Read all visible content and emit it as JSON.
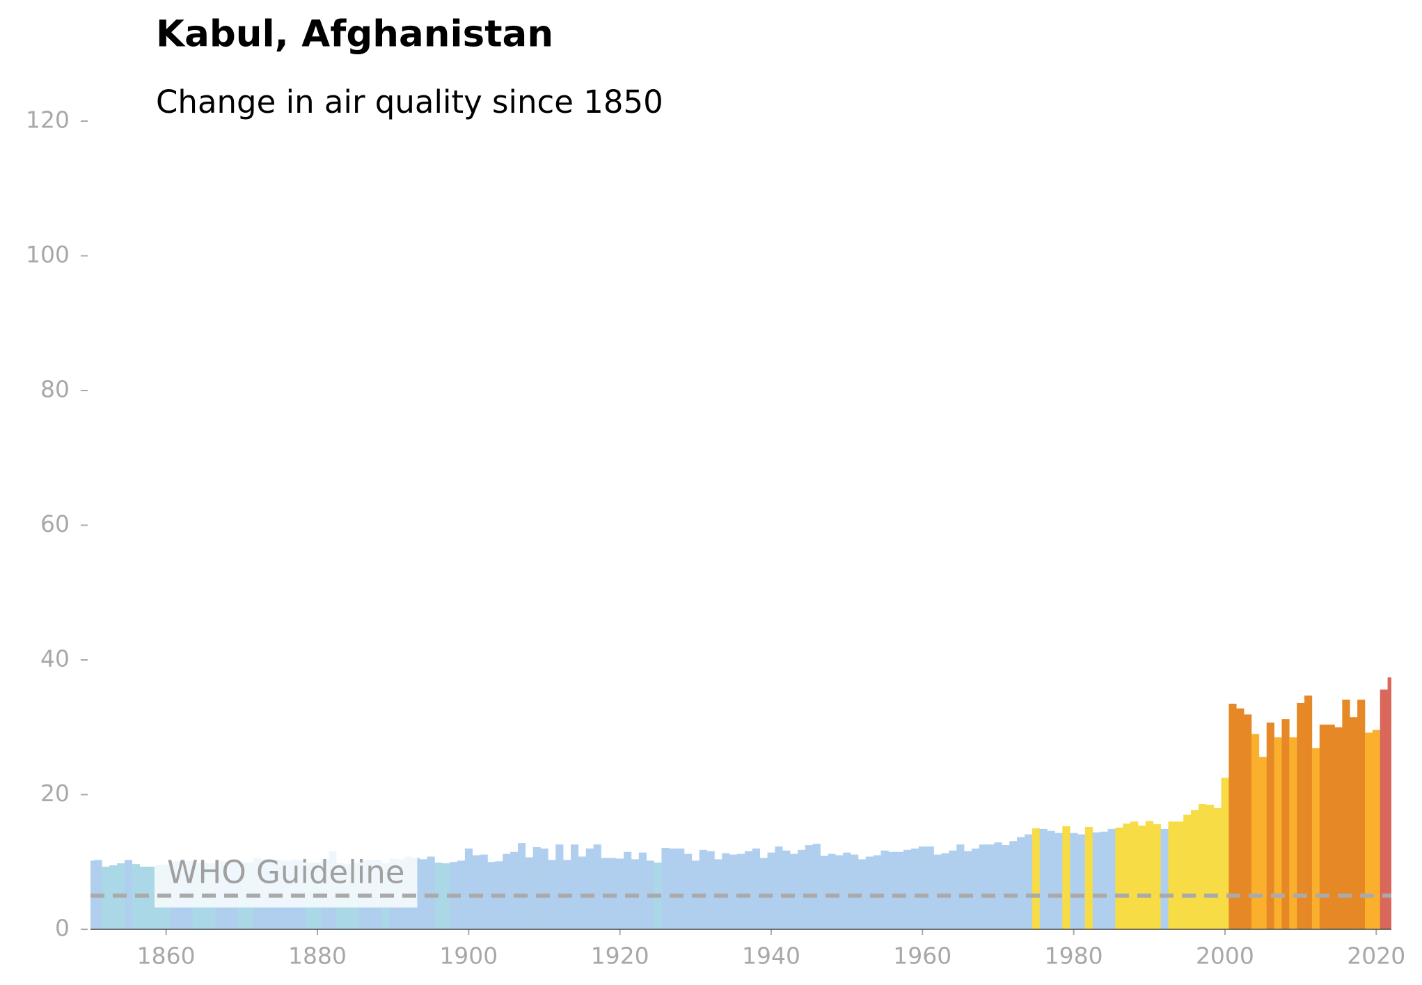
{
  "chart_data": {
    "type": "bar",
    "title": "Kabul, Afghanistan",
    "subtitle": "Change in air quality since 1850",
    "x": [
      1850,
      1851,
      1852,
      1853,
      1854,
      1855,
      1856,
      1857,
      1858,
      1859,
      1860,
      1861,
      1862,
      1863,
      1864,
      1865,
      1866,
      1867,
      1868,
      1869,
      1870,
      1871,
      1872,
      1873,
      1874,
      1875,
      1876,
      1877,
      1878,
      1879,
      1880,
      1881,
      1882,
      1883,
      1884,
      1885,
      1886,
      1887,
      1888,
      1889,
      1890,
      1891,
      1892,
      1893,
      1894,
      1895,
      1896,
      1897,
      1898,
      1899,
      1900,
      1901,
      1902,
      1903,
      1904,
      1905,
      1906,
      1907,
      1908,
      1909,
      1910,
      1911,
      1912,
      1913,
      1914,
      1915,
      1916,
      1917,
      1918,
      1919,
      1920,
      1921,
      1922,
      1923,
      1924,
      1925,
      1926,
      1927,
      1928,
      1929,
      1930,
      1931,
      1932,
      1933,
      1934,
      1935,
      1936,
      1937,
      1938,
      1939,
      1940,
      1941,
      1942,
      1943,
      1944,
      1945,
      1946,
      1947,
      1948,
      1949,
      1950,
      1951,
      1952,
      1953,
      1954,
      1955,
      1956,
      1957,
      1958,
      1959,
      1960,
      1961,
      1962,
      1963,
      1964,
      1965,
      1966,
      1967,
      1968,
      1969,
      1970,
      1971,
      1972,
      1973,
      1974,
      1975,
      1976,
      1977,
      1978,
      1979,
      1980,
      1981,
      1982,
      1983,
      1984,
      1985,
      1986,
      1987,
      1988,
      1989,
      1990,
      1991,
      1992,
      1993,
      1994,
      1995,
      1996,
      1997,
      1998,
      1999,
      2000,
      2001,
      2002,
      2003,
      2004,
      2005,
      2006,
      2007,
      2008,
      2009,
      2010,
      2011,
      2012,
      2013,
      2014,
      2015,
      2016,
      2017,
      2018,
      2019,
      2020,
      2021,
      2022
    ],
    "values": [
      10.2,
      10.3,
      9.3,
      9.5,
      9.8,
      10.3,
      9.7,
      9.3,
      9.3,
      9.5,
      9.6,
      10.1,
      10.1,
      10.1,
      9.8,
      9.9,
      9.8,
      10.2,
      10.1,
      10.0,
      9.9,
      9.9,
      10.6,
      10.4,
      10.3,
      10.3,
      10.2,
      10.4,
      10.2,
      9.9,
      9.9,
      10.3,
      11.6,
      9.8,
      9.7,
      9.9,
      10.2,
      10.3,
      10.3,
      9.8,
      10.5,
      10.4,
      10.8,
      10.6,
      10.4,
      10.8,
      9.9,
      9.8,
      10.0,
      10.2,
      12.0,
      11.0,
      11.1,
      10.0,
      10.1,
      11.2,
      11.5,
      12.8,
      10.7,
      12.2,
      12.0,
      10.3,
      12.6,
      10.3,
      12.6,
      10.8,
      12.0,
      12.6,
      10.6,
      10.6,
      10.5,
      11.5,
      10.4,
      11.4,
      10.2,
      9.9,
      12.1,
      12.0,
      12.0,
      11.2,
      10.2,
      11.8,
      11.6,
      10.4,
      11.3,
      11.1,
      11.2,
      11.6,
      12.0,
      10.6,
      11.4,
      12.3,
      11.7,
      11.2,
      11.8,
      12.5,
      12.7,
      10.9,
      11.2,
      11.0,
      11.4,
      11.1,
      10.4,
      10.8,
      11.0,
      11.7,
      11.5,
      11.5,
      11.8,
      12.0,
      12.3,
      12.3,
      11.1,
      11.3,
      11.7,
      12.6,
      11.6,
      12.0,
      12.6,
      12.6,
      12.9,
      12.5,
      13.1,
      13.7,
      14.1,
      15.0,
      14.9,
      14.6,
      14.3,
      15.3,
      14.3,
      14.1,
      15.2,
      14.4,
      14.5,
      14.9,
      15.1,
      15.7,
      16.0,
      15.4,
      16.1,
      15.6,
      14.9,
      16.0,
      16.0,
      17.0,
      17.7,
      18.6,
      18.5,
      18.0,
      22.5,
      33.5,
      32.8,
      31.9,
      29.0,
      25.6,
      30.7,
      28.5,
      31.2,
      28.5,
      33.6,
      34.7,
      26.9,
      30.4,
      30.4,
      30.0,
      34.1,
      31.5,
      34.1,
      29.2,
      29.6,
      35.6,
      37.4
    ],
    "colors": [
      "#b0cfee",
      "#b0cfee",
      "#aad8e6",
      "#aad8e6",
      "#aad8e6",
      "#b0cfee",
      "#aad8e6",
      "#aad8e6",
      "#aad8e6",
      "#aad8e6",
      "#aad8e6",
      "#b0cfee",
      "#b0cfee",
      "#b0cfee",
      "#aad8e6",
      "#aad8e6",
      "#aad8e6",
      "#b0cfee",
      "#b0cfee",
      "#b0cfee",
      "#aad8e6",
      "#aad8e6",
      "#b0cfee",
      "#b0cfee",
      "#b0cfee",
      "#b0cfee",
      "#b0cfee",
      "#b0cfee",
      "#b0cfee",
      "#aad8e6",
      "#aad8e6",
      "#b0cfee",
      "#b0cfee",
      "#aad8e6",
      "#aad8e6",
      "#aad8e6",
      "#b0cfee",
      "#b0cfee",
      "#b0cfee",
      "#aad8e6",
      "#b0cfee",
      "#b0cfee",
      "#b0cfee",
      "#b0cfee",
      "#b0cfee",
      "#b0cfee",
      "#aad8e6",
      "#aad8e6",
      "#b0cfee",
      "#b0cfee",
      "#b0cfee",
      "#b0cfee",
      "#b0cfee",
      "#b0cfee",
      "#b0cfee",
      "#b0cfee",
      "#b0cfee",
      "#b0cfee",
      "#b0cfee",
      "#b0cfee",
      "#b0cfee",
      "#b0cfee",
      "#b0cfee",
      "#b0cfee",
      "#b0cfee",
      "#b0cfee",
      "#b0cfee",
      "#b0cfee",
      "#b0cfee",
      "#b0cfee",
      "#b0cfee",
      "#b0cfee",
      "#b0cfee",
      "#b0cfee",
      "#b0cfee",
      "#aad8e6",
      "#b0cfee",
      "#b0cfee",
      "#b0cfee",
      "#b0cfee",
      "#b0cfee",
      "#b0cfee",
      "#b0cfee",
      "#b0cfee",
      "#b0cfee",
      "#b0cfee",
      "#b0cfee",
      "#b0cfee",
      "#b0cfee",
      "#b0cfee",
      "#b0cfee",
      "#b0cfee",
      "#b0cfee",
      "#b0cfee",
      "#b0cfee",
      "#b0cfee",
      "#b0cfee",
      "#b0cfee",
      "#b0cfee",
      "#b0cfee",
      "#b0cfee",
      "#b0cfee",
      "#b0cfee",
      "#b0cfee",
      "#b0cfee",
      "#b0cfee",
      "#b0cfee",
      "#b0cfee",
      "#b0cfee",
      "#b0cfee",
      "#b0cfee",
      "#b0cfee",
      "#b0cfee",
      "#b0cfee",
      "#b0cfee",
      "#b0cfee",
      "#b0cfee",
      "#b0cfee",
      "#b0cfee",
      "#b0cfee",
      "#b0cfee",
      "#b0cfee",
      "#b0cfee",
      "#b0cfee",
      "#b0cfee",
      "#f7dc45",
      "#b0cfee",
      "#b0cfee",
      "#b0cfee",
      "#f7dc45",
      "#b0cfee",
      "#b0cfee",
      "#f7dc45",
      "#b0cfee",
      "#b0cfee",
      "#b0cfee",
      "#f7dc45",
      "#f7dc45",
      "#f7dc45",
      "#f7dc45",
      "#f7dc45",
      "#f7dc45",
      "#b0cfee",
      "#f7dc45",
      "#f7dc45",
      "#f7dc45",
      "#f7dc45",
      "#f7dc45",
      "#f7dc45",
      "#f7dc45",
      "#f7dc45",
      "#e68825",
      "#e68825",
      "#e68825",
      "#fbb02d",
      "#fbb02d",
      "#e68825",
      "#fbb02d",
      "#e68825",
      "#fbb02d",
      "#e68825",
      "#e68825",
      "#fbb02d",
      "#e68825",
      "#e68825",
      "#e68825",
      "#e68825",
      "#e68825",
      "#e68825",
      "#fbb02d",
      "#fbb02d",
      "#d9675a",
      "#d9675a"
    ],
    "xlim": [
      1850,
      2022
    ],
    "xticks": [
      1860,
      1880,
      1900,
      1920,
      1940,
      1960,
      1980,
      2000,
      2020
    ],
    "ylim": [
      0,
      120
    ],
    "yticks": [
      0,
      20,
      40,
      60,
      80,
      100,
      120
    ],
    "guideline": {
      "value": 5,
      "label": "WHO Guideline",
      "color": "#aaaaaa"
    }
  }
}
